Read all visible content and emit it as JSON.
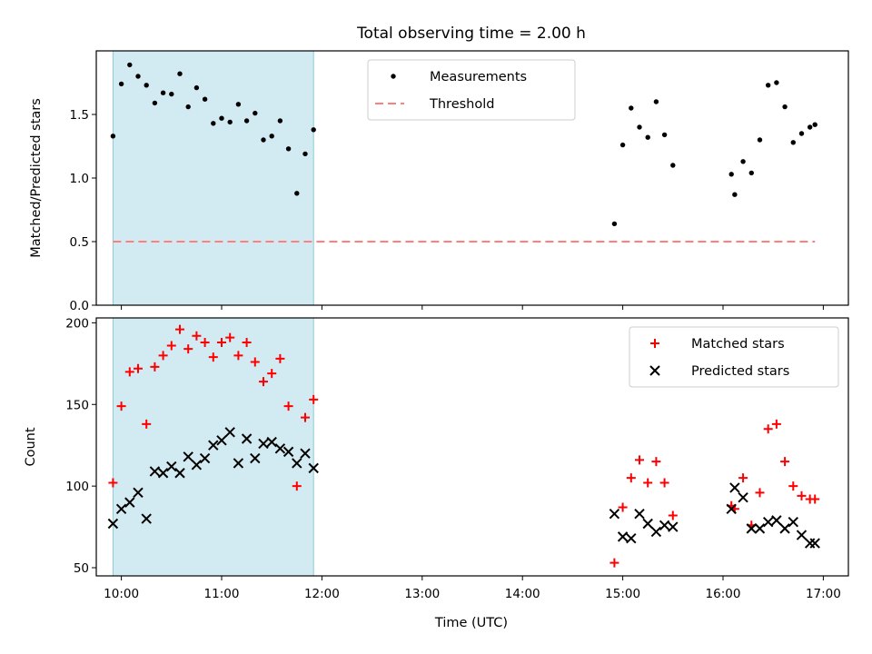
{
  "chart_data": {
    "title": "Total observing time = 2.00 h",
    "xlabel": "Time (UTC)",
    "x_axis": {
      "range": [
        "09:45",
        "17:15"
      ],
      "ticks": [
        "10:00",
        "11:00",
        "12:00",
        "13:00",
        "14:00",
        "15:00",
        "16:00",
        "17:00"
      ]
    },
    "shaded_interval": {
      "start": "09:55",
      "end": "11:55",
      "color": "#add8e6"
    },
    "panels": [
      {
        "type": "scatter",
        "ylabel": "Matched/Predicted stars",
        "ylim": [
          0,
          2.0
        ],
        "yticks": [
          "0.0",
          "0.5",
          "1.0",
          "1.5"
        ],
        "legend_position": "top-center",
        "series": [
          {
            "name": "Measurements",
            "marker": "dot",
            "color": "#000000",
            "points": [
              [
                "09:55",
                1.33
              ],
              [
                "10:00",
                1.74
              ],
              [
                "10:05",
                1.89
              ],
              [
                "10:10",
                1.8
              ],
              [
                "10:15",
                1.73
              ],
              [
                "10:20",
                1.59
              ],
              [
                "10:25",
                1.67
              ],
              [
                "10:30",
                1.66
              ],
              [
                "10:35",
                1.82
              ],
              [
                "10:40",
                1.56
              ],
              [
                "10:45",
                1.71
              ],
              [
                "10:50",
                1.62
              ],
              [
                "10:55",
                1.43
              ],
              [
                "11:00",
                1.47
              ],
              [
                "11:05",
                1.44
              ],
              [
                "11:10",
                1.58
              ],
              [
                "11:15",
                1.45
              ],
              [
                "11:20",
                1.51
              ],
              [
                "11:25",
                1.3
              ],
              [
                "11:30",
                1.33
              ],
              [
                "11:35",
                1.45
              ],
              [
                "11:40",
                1.23
              ],
              [
                "11:45",
                0.88
              ],
              [
                "11:50",
                1.19
              ],
              [
                "11:55",
                1.38
              ],
              [
                "14:55",
                0.64
              ],
              [
                "15:00",
                1.26
              ],
              [
                "15:05",
                1.55
              ],
              [
                "15:10",
                1.4
              ],
              [
                "15:15",
                1.32
              ],
              [
                "15:20",
                1.6
              ],
              [
                "15:25",
                1.34
              ],
              [
                "15:30",
                1.1
              ],
              [
                "16:05",
                1.03
              ],
              [
                "16:07",
                0.87
              ],
              [
                "16:12",
                1.13
              ],
              [
                "16:17",
                1.04
              ],
              [
                "16:22",
                1.3
              ],
              [
                "16:27",
                1.73
              ],
              [
                "16:32",
                1.75
              ],
              [
                "16:37",
                1.56
              ],
              [
                "16:42",
                1.28
              ],
              [
                "16:47",
                1.35
              ],
              [
                "16:52",
                1.4
              ],
              [
                "16:55",
                1.42
              ]
            ]
          },
          {
            "name": "Threshold",
            "style": "dashed",
            "color": "#ff7f7f",
            "points": [
              [
                "09:55",
                0.5
              ],
              [
                "16:55",
                0.5
              ]
            ]
          }
        ]
      },
      {
        "type": "scatter",
        "ylabel": "Count",
        "ylim": [
          45,
          203
        ],
        "yticks": [
          "50",
          "100",
          "150",
          "200"
        ],
        "legend_position": "top-right",
        "series": [
          {
            "name": "Matched stars",
            "marker": "plus",
            "color": "#ff0000",
            "points": [
              [
                "09:55",
                102
              ],
              [
                "10:00",
                149
              ],
              [
                "10:05",
                170
              ],
              [
                "10:10",
                172
              ],
              [
                "10:15",
                138
              ],
              [
                "10:20",
                173
              ],
              [
                "10:25",
                180
              ],
              [
                "10:30",
                186
              ],
              [
                "10:35",
                196
              ],
              [
                "10:40",
                184
              ],
              [
                "10:45",
                192
              ],
              [
                "10:50",
                188
              ],
              [
                "10:55",
                179
              ],
              [
                "11:00",
                188
              ],
              [
                "11:05",
                191
              ],
              [
                "11:10",
                180
              ],
              [
                "11:15",
                188
              ],
              [
                "11:20",
                176
              ],
              [
                "11:25",
                164
              ],
              [
                "11:30",
                169
              ],
              [
                "11:35",
                178
              ],
              [
                "11:40",
                149
              ],
              [
                "11:45",
                100
              ],
              [
                "11:50",
                142
              ],
              [
                "11:55",
                153
              ],
              [
                "14:55",
                53
              ],
              [
                "15:00",
                87
              ],
              [
                "15:05",
                105
              ],
              [
                "15:10",
                116
              ],
              [
                "15:15",
                102
              ],
              [
                "15:20",
                115
              ],
              [
                "15:25",
                102
              ],
              [
                "15:30",
                82
              ],
              [
                "16:05",
                88
              ],
              [
                "16:07",
                86
              ],
              [
                "16:12",
                105
              ],
              [
                "16:17",
                76
              ],
              [
                "16:22",
                96
              ],
              [
                "16:27",
                135
              ],
              [
                "16:32",
                138
              ],
              [
                "16:37",
                115
              ],
              [
                "16:42",
                100
              ],
              [
                "16:47",
                94
              ],
              [
                "16:52",
                92
              ],
              [
                "16:55",
                92
              ]
            ]
          },
          {
            "name": "Predicted stars",
            "marker": "x",
            "color": "#000000",
            "points": [
              [
                "09:55",
                77
              ],
              [
                "10:00",
                86
              ],
              [
                "10:05",
                90
              ],
              [
                "10:10",
                96
              ],
              [
                "10:15",
                80
              ],
              [
                "10:20",
                109
              ],
              [
                "10:25",
                108
              ],
              [
                "10:30",
                112
              ],
              [
                "10:35",
                108
              ],
              [
                "10:40",
                118
              ],
              [
                "10:45",
                113
              ],
              [
                "10:50",
                117
              ],
              [
                "10:55",
                125
              ],
              [
                "11:00",
                128
              ],
              [
                "11:05",
                133
              ],
              [
                "11:10",
                114
              ],
              [
                "11:15",
                129
              ],
              [
                "11:20",
                117
              ],
              [
                "11:25",
                126
              ],
              [
                "11:30",
                127
              ],
              [
                "11:35",
                123
              ],
              [
                "11:40",
                121
              ],
              [
                "11:45",
                114
              ],
              [
                "11:50",
                120
              ],
              [
                "11:55",
                111
              ],
              [
                "14:55",
                83
              ],
              [
                "15:00",
                69
              ],
              [
                "15:05",
                68
              ],
              [
                "15:10",
                83
              ],
              [
                "15:15",
                77
              ],
              [
                "15:20",
                72
              ],
              [
                "15:25",
                76
              ],
              [
                "15:30",
                75
              ],
              [
                "16:05",
                86
              ],
              [
                "16:07",
                99
              ],
              [
                "16:12",
                93
              ],
              [
                "16:17",
                74
              ],
              [
                "16:22",
                74
              ],
              [
                "16:27",
                78
              ],
              [
                "16:32",
                79
              ],
              [
                "16:37",
                74
              ],
              [
                "16:42",
                78
              ],
              [
                "16:47",
                70
              ],
              [
                "16:52",
                65
              ],
              [
                "16:55",
                65
              ]
            ]
          }
        ]
      }
    ]
  }
}
